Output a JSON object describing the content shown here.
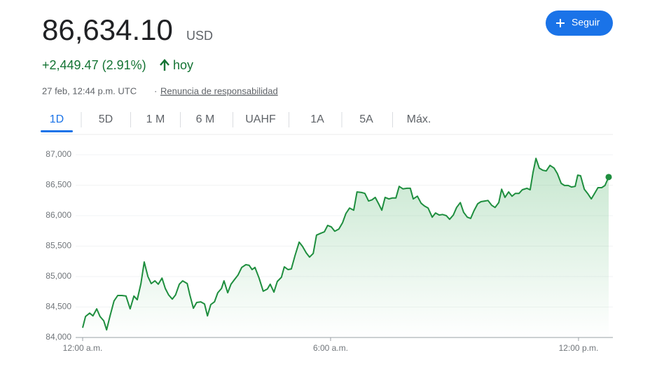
{
  "header": {
    "price": "86,634.10",
    "currency": "USD",
    "change": "+2,449.47 (2.91%)",
    "period": "hoy",
    "timestamp": "27 feb, 12:44 p.m. UTC",
    "separator": "·",
    "disclaimer": "Renuncia de responsabilidad",
    "follow_button": "Seguir"
  },
  "tabs": {
    "items": [
      "1D",
      "5D",
      "1 M",
      "6 M",
      "UAHF",
      "1A",
      "5A",
      "Máx."
    ],
    "active": 0
  },
  "chart_data": {
    "type": "line",
    "color": "#1e8e3e",
    "grid": true,
    "x": [
      0,
      0.07,
      0.17,
      0.25,
      0.34,
      0.42,
      0.51,
      0.58,
      0.66,
      0.76,
      0.85,
      0.95,
      1.05,
      1.15,
      1.24,
      1.32,
      1.41,
      1.49,
      1.58,
      1.66,
      1.75,
      1.83,
      1.92,
      2.0,
      2.08,
      2.17,
      2.25,
      2.34,
      2.42,
      2.53,
      2.59,
      2.68,
      2.76,
      2.86,
      2.95,
      3.02,
      3.1,
      3.19,
      3.27,
      3.36,
      3.42,
      3.51,
      3.59,
      3.68,
      3.76,
      3.85,
      3.95,
      4.03,
      4.1,
      4.17,
      4.27,
      4.37,
      4.47,
      4.54,
      4.63,
      4.71,
      4.81,
      4.88,
      4.97,
      5.05,
      5.14,
      5.24,
      5.32,
      5.41,
      5.49,
      5.58,
      5.66,
      5.76,
      5.85,
      5.93,
      6.02,
      6.1,
      6.2,
      6.29,
      6.37,
      6.46,
      6.56,
      6.64,
      6.75,
      6.83,
      6.92,
      7.0,
      7.08,
      7.17,
      7.24,
      7.32,
      7.41,
      7.49,
      7.58,
      7.66,
      7.75,
      7.85,
      7.93,
      8.0,
      8.1,
      8.19,
      8.27,
      8.36,
      8.46,
      8.54,
      8.63,
      8.71,
      8.8,
      8.88,
      8.97,
      9.05,
      9.14,
      9.22,
      9.31,
      9.39,
      9.47,
      9.56,
      9.64,
      9.73,
      9.81,
      9.9,
      9.98,
      10.07,
      10.14,
      10.22,
      10.31,
      10.39,
      10.47,
      10.56,
      10.64,
      10.75,
      10.83,
      10.9,
      10.97,
      11.05,
      11.14,
      11.22,
      11.31,
      11.41,
      11.49,
      11.58,
      11.66,
      11.75,
      11.83,
      11.92,
      11.98,
      12.05,
      12.14,
      12.22,
      12.31,
      12.39,
      12.47,
      12.56,
      12.64,
      12.73
    ],
    "values": [
      84160,
      84345,
      84400,
      84355,
      84470,
      84345,
      84275,
      84125,
      84345,
      84600,
      84690,
      84690,
      84680,
      84470,
      84680,
      84620,
      84885,
      85240,
      85000,
      84885,
      84930,
      84875,
      84975,
      84805,
      84700,
      84630,
      84700,
      84875,
      84930,
      84885,
      84710,
      84480,
      84575,
      84585,
      84550,
      84355,
      84540,
      84585,
      84735,
      84805,
      84930,
      84735,
      84875,
      84955,
      85025,
      85150,
      85195,
      85185,
      85115,
      85150,
      84975,
      84760,
      84795,
      84875,
      84745,
      84920,
      84990,
      85160,
      85115,
      85125,
      85345,
      85565,
      85495,
      85390,
      85320,
      85380,
      85680,
      85710,
      85735,
      85840,
      85815,
      85745,
      85780,
      85885,
      86035,
      86125,
      86090,
      86390,
      86380,
      86365,
      86240,
      86260,
      86300,
      86185,
      86090,
      86300,
      86275,
      86290,
      86290,
      86480,
      86440,
      86450,
      86450,
      86275,
      86320,
      86205,
      86160,
      86125,
      85975,
      86045,
      86010,
      86020,
      86000,
      85940,
      86010,
      86135,
      86215,
      86055,
      85975,
      85955,
      86080,
      86195,
      86230,
      86240,
      86250,
      86170,
      86135,
      86215,
      86435,
      86300,
      86390,
      86320,
      86365,
      86365,
      86425,
      86450,
      86425,
      86710,
      86940,
      86780,
      86745,
      86735,
      86825,
      86780,
      86690,
      86530,
      86495,
      86495,
      86470,
      86480,
      86665,
      86655,
      86435,
      86365,
      86275,
      86365,
      86460,
      86460,
      86495,
      86634.1
    ],
    "xlim": [
      0,
      12.73
    ],
    "xticks": [
      {
        "value": 0,
        "label": "12:00 a.m."
      },
      {
        "value": 6,
        "label": "6:00 a.m."
      },
      {
        "value": 12,
        "label": "12:00 p.m."
      }
    ],
    "ylim": [
      84000,
      87000
    ],
    "yticks": [
      {
        "value": 84000,
        "label": "84,000"
      },
      {
        "value": 84500,
        "label": "84,500"
      },
      {
        "value": 85000,
        "label": "85,000"
      },
      {
        "value": 85500,
        "label": "85,500"
      },
      {
        "value": 86000,
        "label": "86,000"
      },
      {
        "value": 86500,
        "label": "86,500"
      },
      {
        "value": 87000,
        "label": "87,000"
      }
    ]
  }
}
